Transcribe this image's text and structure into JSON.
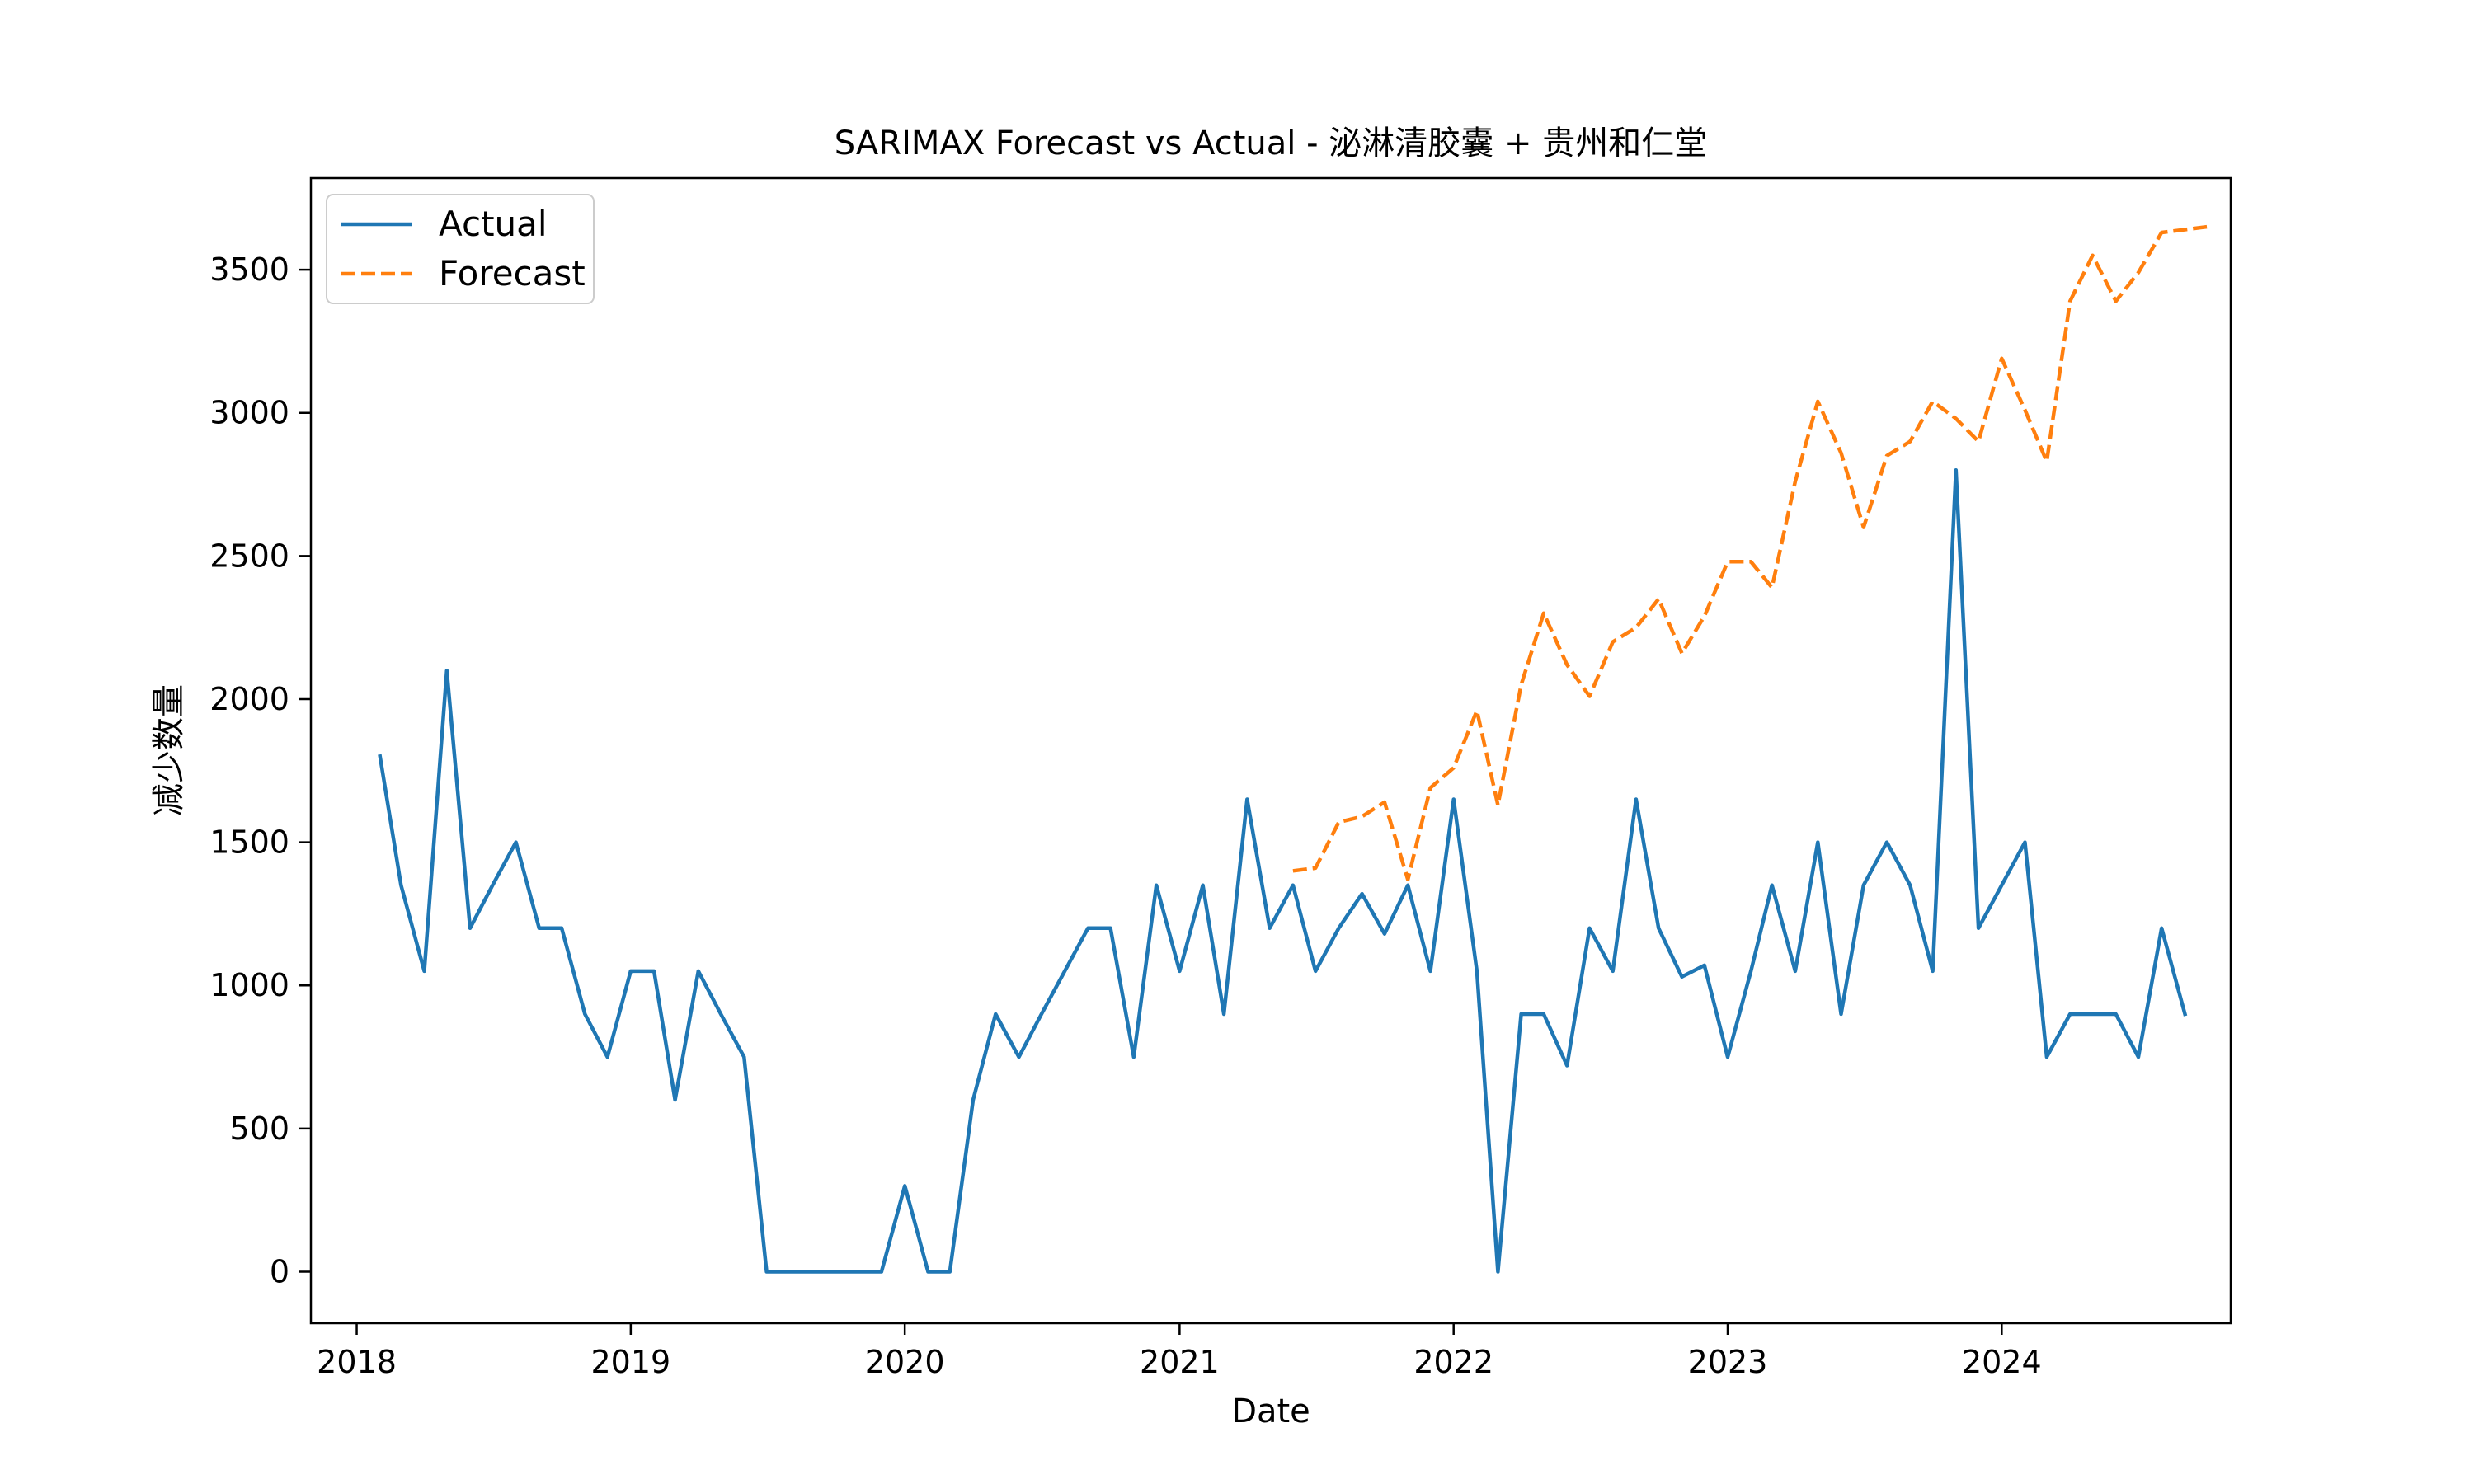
{
  "chart_data": {
    "type": "line",
    "title": "SARIMAX Forecast vs Actual - 泌淋清胶囊 + 贵州和仁堂",
    "xlabel": "Date",
    "ylabel": "减少数量",
    "xlim": [
      "2017-11-01",
      "2024-11-01"
    ],
    "ylim": [
      -180,
      3820
    ],
    "x_ticks": [
      "2018",
      "2019",
      "2020",
      "2021",
      "2022",
      "2023",
      "2024"
    ],
    "y_ticks": [
      0,
      500,
      1000,
      1500,
      2000,
      2500,
      3000,
      3500
    ],
    "grid": false,
    "legend_position": "top-left",
    "series": [
      {
        "name": "Actual",
        "color": "#1f77b4",
        "style": "solid",
        "x": [
          "2018-02",
          "2018-03",
          "2018-04",
          "2018-05",
          "2018-06",
          "2018-07",
          "2018-08",
          "2018-09",
          "2018-10",
          "2018-11",
          "2018-12",
          "2019-01",
          "2019-02",
          "2019-03",
          "2019-04",
          "2019-05",
          "2019-06",
          "2019-07",
          "2019-08",
          "2019-09",
          "2019-10",
          "2019-11",
          "2019-12",
          "2020-01",
          "2020-02",
          "2020-03",
          "2020-04",
          "2020-05",
          "2020-06",
          "2020-07",
          "2020-08",
          "2020-09",
          "2020-10",
          "2020-11",
          "2020-12",
          "2021-01",
          "2021-02",
          "2021-03",
          "2021-04",
          "2021-05",
          "2021-06",
          "2021-07",
          "2021-08",
          "2021-09",
          "2021-10",
          "2021-11",
          "2021-12",
          "2022-01",
          "2022-02",
          "2022-03",
          "2022-04",
          "2022-05",
          "2022-06",
          "2022-07",
          "2022-08",
          "2022-09",
          "2022-10",
          "2022-11",
          "2022-12",
          "2023-01",
          "2023-02",
          "2023-03",
          "2023-04",
          "2023-05",
          "2023-06",
          "2023-07",
          "2023-08",
          "2023-09",
          "2023-10",
          "2023-11",
          "2023-12",
          "2024-01",
          "2024-02",
          "2024-03",
          "2024-04",
          "2024-05",
          "2024-06",
          "2024-07",
          "2024-08",
          "2024-09"
        ],
        "values": [
          1800,
          1350,
          1050,
          2100,
          1200,
          1350,
          1500,
          1200,
          1200,
          900,
          750,
          1050,
          1050,
          600,
          1050,
          900,
          750,
          0,
          0,
          0,
          0,
          0,
          0,
          300,
          0,
          0,
          600,
          900,
          750,
          900,
          1050,
          1200,
          1200,
          750,
          1350,
          1050,
          1350,
          900,
          1650,
          1200,
          1350,
          1050,
          1200,
          1320,
          1180,
          1350,
          1050,
          1650,
          1050,
          0,
          900,
          900,
          720,
          1200,
          1050,
          1650,
          1200,
          1030,
          1070,
          750,
          1050,
          1350,
          1050,
          1500,
          900,
          1350,
          1500,
          1350,
          1050,
          2800,
          1200,
          1350,
          1500,
          750,
          900,
          900,
          900,
          750,
          1200,
          900
        ]
      },
      {
        "name": "Forecast",
        "color": "#ff7f0e",
        "style": "dashed",
        "x": [
          "2021-06",
          "2021-07",
          "2021-08",
          "2021-09",
          "2021-10",
          "2021-11",
          "2021-12",
          "2022-01",
          "2022-02",
          "2022-03",
          "2022-04",
          "2022-05",
          "2022-06",
          "2022-07",
          "2022-08",
          "2022-09",
          "2022-10",
          "2022-11",
          "2022-12",
          "2023-01",
          "2023-02",
          "2023-03",
          "2023-04",
          "2023-05",
          "2023-06",
          "2023-07",
          "2023-08",
          "2023-09",
          "2023-10",
          "2023-11",
          "2023-12",
          "2024-01",
          "2024-02",
          "2024-03",
          "2024-04",
          "2024-05",
          "2024-06",
          "2024-07",
          "2024-08",
          "2024-09",
          "2024-10"
        ],
        "values": [
          1400,
          1410,
          1570,
          1590,
          1640,
          1370,
          1690,
          1760,
          1960,
          1630,
          2050,
          2300,
          2120,
          2010,
          2200,
          2250,
          2350,
          2160,
          2290,
          2480,
          2480,
          2390,
          2760,
          3040,
          2860,
          2600,
          2850,
          2900,
          3040,
          2980,
          2900,
          3190,
          3010,
          2830,
          3390,
          3550,
          3390,
          3490,
          3630,
          3640,
          3650
        ]
      }
    ]
  }
}
